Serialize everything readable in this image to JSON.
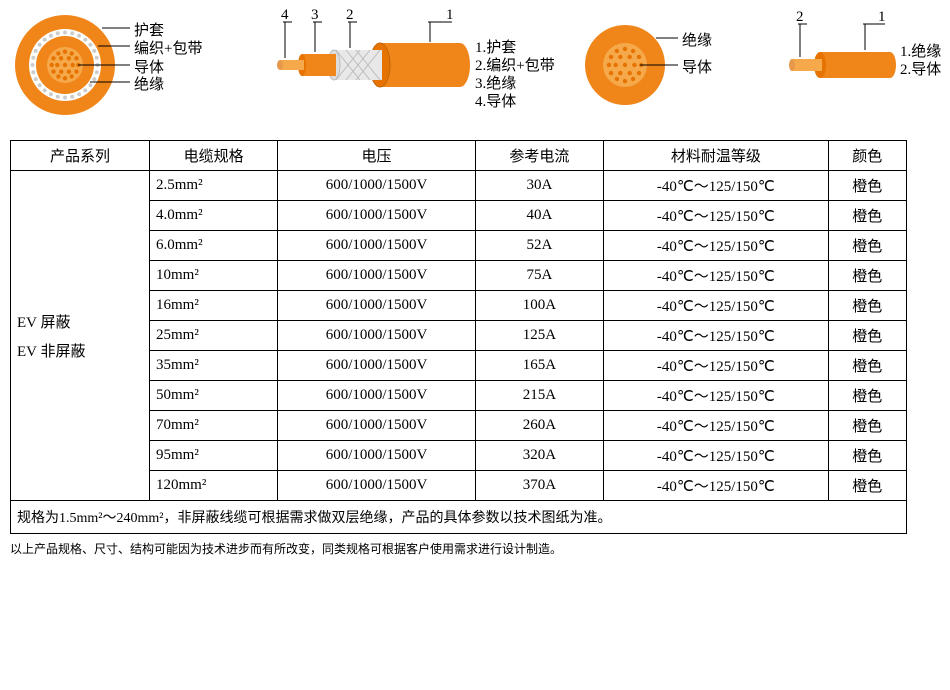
{
  "colors": {
    "orange": "#f08519",
    "orange_dark": "#e67300",
    "core_fill": "#f5a94a",
    "white": "#ffffff",
    "mesh": "#d9d9d9",
    "line": "#000000"
  },
  "diagram1": {
    "labels": [
      "护套",
      "编织+包带",
      "导体",
      "绝缘"
    ]
  },
  "diagram2": {
    "nums": [
      "4",
      "3",
      "2",
      "1"
    ],
    "legend": [
      "1.护套",
      "2.编织+包带",
      "3.绝缘",
      "4.导体"
    ]
  },
  "diagram3": {
    "labels": [
      "绝缘",
      "导体"
    ]
  },
  "diagram4": {
    "nums": [
      "2",
      "1"
    ],
    "legend": [
      "1.绝缘",
      "2.导体"
    ]
  },
  "table": {
    "headers": [
      "产品系列",
      "电缆规格",
      "电压",
      "参考电流",
      "材料耐温等级",
      "颜色"
    ],
    "series": [
      "EV 屏蔽",
      "EV 非屏蔽"
    ],
    "rows": [
      {
        "spec": "2.5mm²",
        "volt": "600/1000/1500V",
        "current": "30A",
        "temp": "-40℃～125/150℃",
        "color": "橙色"
      },
      {
        "spec": "4.0mm²",
        "volt": "600/1000/1500V",
        "current": "40A",
        "temp": "-40℃～125/150℃",
        "color": "橙色"
      },
      {
        "spec": "6.0mm²",
        "volt": "600/1000/1500V",
        "current": "52A",
        "temp": "-40℃～125/150℃",
        "color": "橙色"
      },
      {
        "spec": "10mm²",
        "volt": "600/1000/1500V",
        "current": "75A",
        "temp": "-40℃～125/150℃",
        "color": "橙色"
      },
      {
        "spec": "16mm²",
        "volt": "600/1000/1500V",
        "current": "100A",
        "temp": "-40℃～125/150℃",
        "color": "橙色"
      },
      {
        "spec": "25mm²",
        "volt": "600/1000/1500V",
        "current": "125A",
        "temp": "-40℃～125/150℃",
        "color": "橙色"
      },
      {
        "spec": "35mm²",
        "volt": "600/1000/1500V",
        "current": "165A",
        "temp": "-40℃～125/150℃",
        "color": "橙色"
      },
      {
        "spec": "50mm²",
        "volt": "600/1000/1500V",
        "current": "215A",
        "temp": "-40℃～125/150℃",
        "color": "橙色"
      },
      {
        "spec": "70mm²",
        "volt": "600/1000/1500V",
        "current": "260A",
        "temp": "-40℃～125/150℃",
        "color": "橙色"
      },
      {
        "spec": "95mm²",
        "volt": "600/1000/1500V",
        "current": "320A",
        "temp": "-40℃～125/150℃",
        "color": "橙色"
      },
      {
        "spec": "120mm²",
        "volt": "600/1000/1500V",
        "current": "370A",
        "temp": "-40℃～125/150℃",
        "color": "橙色"
      }
    ],
    "note": "规格为1.5mm²～240mm²，非屏蔽线缆可根据需求做双层绝缘，产品的具体参数以技术图纸为准。"
  },
  "footnote": "以上产品规格、尺寸、结构可能因为技术进步而有所改变，同类规格可根据客户使用需求进行设计制造。",
  "geom": {
    "cross1": {
      "r_outer": 50,
      "r_mesh_out": 36,
      "r_mesh_in": 29,
      "r_insul": 28,
      "r_core": 18
    },
    "cross3": {
      "r_outer": 40,
      "r_core": 22
    }
  }
}
